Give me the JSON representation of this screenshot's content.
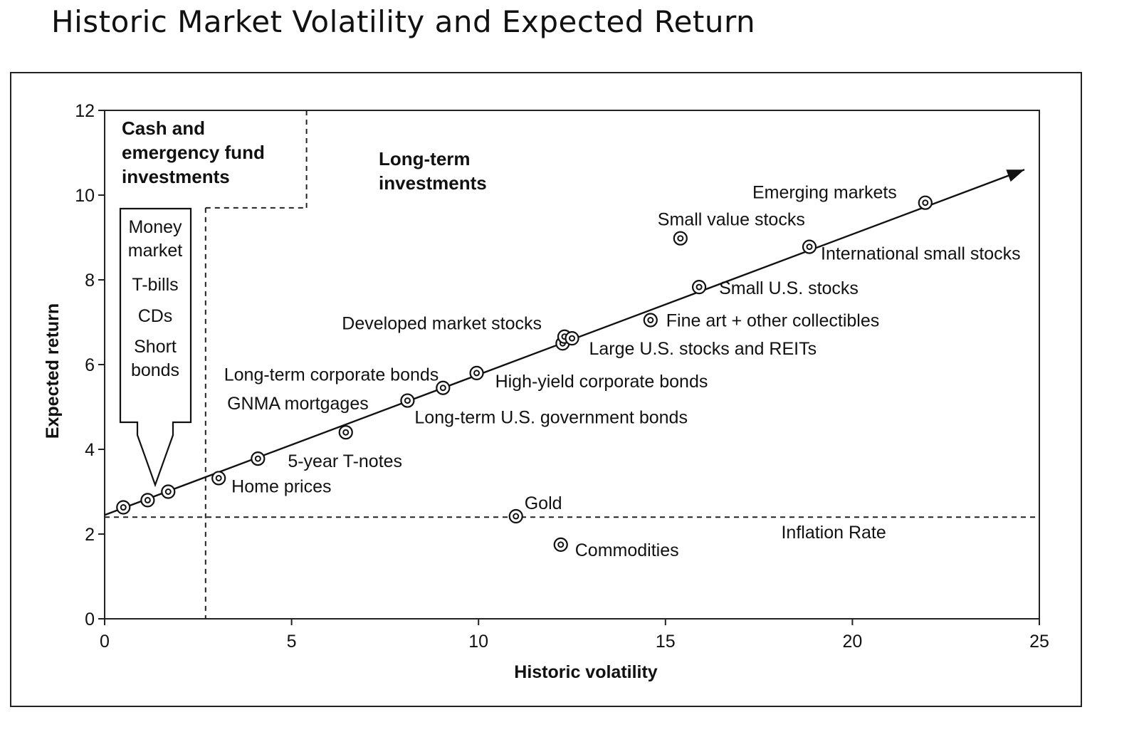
{
  "title": "Historic Market Volatility and Expected Return",
  "chart_data": {
    "type": "scatter",
    "title": "Historic Market Volatility and Expected Return",
    "xlabel": "Historic volatility",
    "ylabel": "Expected return",
    "xlim": [
      0,
      25
    ],
    "ylim": [
      0,
      12
    ],
    "xticks": [
      0,
      5,
      10,
      15,
      20,
      25
    ],
    "yticks": [
      0,
      2,
      4,
      6,
      8,
      10,
      12
    ],
    "grid": false,
    "legend": "none",
    "trend_line": {
      "from": [
        0,
        2.45
      ],
      "to": [
        24.6,
        10.6
      ]
    },
    "inflation_rate": {
      "label": "Inflation Rate",
      "value": 2.4
    },
    "regions": {
      "cash": {
        "label": [
          "Cash and",
          "emergency fund",
          "investments"
        ],
        "x_boundary": 2.7,
        "y_boundary": 9.7
      },
      "long_term": {
        "label": [
          "Long-term",
          "investments"
        ]
      }
    },
    "cash_box": {
      "items": [
        "Money",
        "market",
        "T-bills",
        "CDs",
        "Short",
        "bonds"
      ]
    },
    "points": [
      {
        "x": 0.5,
        "y": 2.63,
        "label": ""
      },
      {
        "x": 1.15,
        "y": 2.8,
        "label": ""
      },
      {
        "x": 1.7,
        "y": 3.0,
        "label": ""
      },
      {
        "x": 3.05,
        "y": 3.32,
        "label": "Home prices"
      },
      {
        "x": 4.1,
        "y": 3.78,
        "label": "5-year T-notes"
      },
      {
        "x": 6.45,
        "y": 4.4,
        "label": "GNMA mortgages"
      },
      {
        "x": 8.1,
        "y": 5.15,
        "label": "Long-term U.S. government bonds"
      },
      {
        "x": 9.05,
        "y": 5.45,
        "label": "Long-term corporate bonds"
      },
      {
        "x": 9.95,
        "y": 5.8,
        "label": "High-yield corporate bonds"
      },
      {
        "x": 12.25,
        "y": 6.5,
        "label": ""
      },
      {
        "x": 12.3,
        "y": 6.66,
        "label": "Developed market stocks"
      },
      {
        "x": 12.5,
        "y": 6.62,
        "label": "Large U.S. stocks and REITs"
      },
      {
        "x": 14.6,
        "y": 7.05,
        "label": "Fine art + other collectibles"
      },
      {
        "x": 15.9,
        "y": 7.83,
        "label": "Small U.S. stocks"
      },
      {
        "x": 15.4,
        "y": 8.98,
        "label": "Small value stocks"
      },
      {
        "x": 18.85,
        "y": 8.78,
        "label": "International small stocks"
      },
      {
        "x": 21.95,
        "y": 9.82,
        "label": "Emerging markets"
      },
      {
        "x": 11.0,
        "y": 2.42,
        "label": "Gold"
      },
      {
        "x": 12.2,
        "y": 1.75,
        "label": "Commodities"
      }
    ]
  }
}
